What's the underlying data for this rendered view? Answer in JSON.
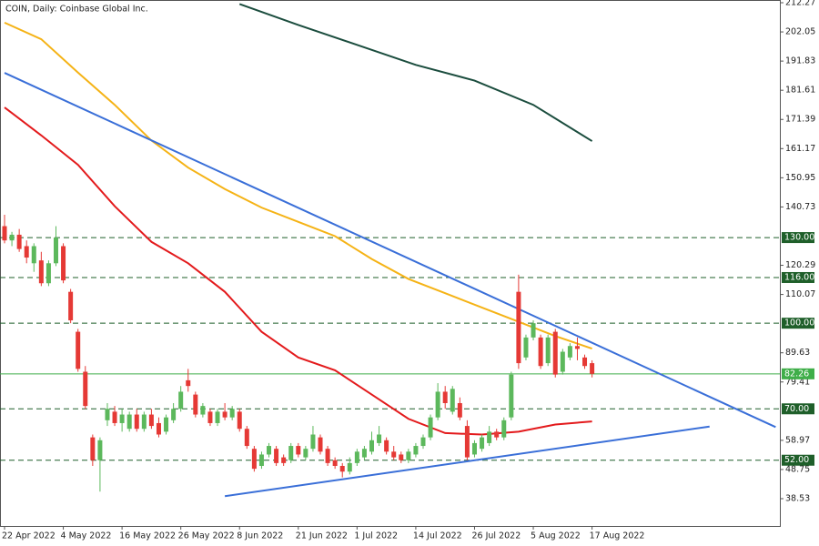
{
  "chart_data": {
    "type": "candlestick",
    "title": "COIN, Daily:  Coinbase Global Inc.",
    "categories": [
      "22 Apr 2022",
      null,
      null,
      null,
      null,
      null,
      null,
      null,
      "4 May 2022",
      null,
      null,
      null,
      null,
      null,
      null,
      null,
      "16 May 2022",
      null,
      null,
      null,
      null,
      null,
      null,
      null,
      "26 May 2022",
      null,
      null,
      null,
      null,
      null,
      null,
      null,
      "8 Jun 2022",
      null,
      null,
      null,
      null,
      null,
      null,
      null,
      "21 Jun 2022",
      null,
      null,
      null,
      null,
      null,
      null,
      null,
      "1 Jul 2022",
      null,
      null,
      null,
      null,
      null,
      null,
      null,
      "14 Jul 2022",
      null,
      null,
      null,
      null,
      null,
      null,
      null,
      "26 Jul 2022",
      null,
      null,
      null,
      null,
      null,
      null,
      null,
      "5 Aug 2022",
      null,
      null,
      null,
      null,
      null,
      null,
      null,
      "17 Aug 2022"
    ],
    "candles": [
      [
        134,
        138,
        128,
        129
      ],
      [
        129,
        132,
        127,
        131
      ],
      [
        131,
        133,
        125,
        126
      ],
      [
        127,
        129,
        121,
        123
      ],
      [
        121,
        128,
        118,
        127
      ],
      [
        122,
        125,
        113,
        114
      ],
      [
        114,
        122,
        113,
        121
      ],
      [
        121,
        134,
        120,
        130
      ],
      [
        127,
        128,
        114,
        115
      ],
      [
        111,
        112,
        100,
        101
      ],
      [
        97,
        98,
        83,
        84
      ],
      [
        83,
        85,
        70,
        71
      ],
      [
        60,
        61,
        50,
        52
      ],
      [
        52,
        60,
        41,
        59
      ],
      [
        66,
        72,
        64,
        70
      ],
      [
        69,
        71,
        64,
        65
      ],
      [
        65,
        70,
        62,
        68
      ],
      [
        63,
        69,
        62,
        68
      ],
      [
        68,
        70,
        62,
        63
      ],
      [
        63,
        69,
        62,
        68
      ],
      [
        68,
        70,
        63,
        64
      ],
      [
        65,
        67,
        60,
        61
      ],
      [
        62,
        68,
        61,
        67
      ],
      [
        66,
        72,
        65,
        70
      ],
      [
        70,
        78,
        69,
        76
      ],
      [
        80,
        84,
        76,
        78
      ],
      [
        75,
        76,
        67,
        68
      ],
      [
        68,
        72,
        67,
        71
      ],
      [
        69,
        70,
        64,
        65
      ],
      [
        65,
        70,
        64,
        69
      ],
      [
        69,
        72,
        66,
        67
      ],
      [
        67,
        71,
        66,
        70
      ],
      [
        69,
        70,
        62,
        63
      ],
      [
        63,
        64,
        56,
        57
      ],
      [
        56,
        57,
        48,
        49
      ],
      [
        50,
        55,
        49,
        54
      ],
      [
        54,
        58,
        53,
        57
      ],
      [
        56,
        57,
        50,
        51
      ],
      [
        53,
        54,
        50,
        51
      ],
      [
        52,
        58,
        51,
        57
      ],
      [
        57,
        58,
        53,
        54
      ],
      [
        53,
        57,
        52,
        56
      ],
      [
        56,
        64,
        55,
        61
      ],
      [
        60,
        61,
        54,
        55
      ],
      [
        56,
        57,
        50,
        51
      ],
      [
        52,
        53,
        49,
        50
      ],
      [
        50,
        51,
        46,
        48
      ],
      [
        48,
        53,
        47,
        51
      ],
      [
        51,
        56,
        50,
        55
      ],
      [
        53,
        57,
        52,
        56
      ],
      [
        55,
        62,
        54,
        59
      ],
      [
        58,
        64,
        57,
        61
      ],
      [
        59,
        60,
        54,
        55
      ],
      [
        55,
        57,
        52,
        53
      ],
      [
        54,
        55,
        51,
        52
      ],
      [
        52,
        56,
        51,
        55
      ],
      [
        54,
        58,
        53,
        57
      ],
      [
        57,
        61,
        56,
        60
      ],
      [
        60,
        68,
        59,
        67
      ],
      [
        67,
        79,
        66,
        76
      ],
      [
        76,
        78,
        70,
        72
      ],
      [
        69,
        78,
        68,
        77
      ],
      [
        72,
        74,
        66,
        67
      ],
      [
        64,
        66,
        52,
        53
      ],
      [
        54,
        59,
        53,
        58
      ],
      [
        56,
        61,
        55,
        60
      ],
      [
        58,
        64,
        57,
        62
      ],
      [
        62,
        63,
        59,
        60
      ],
      [
        60,
        67,
        59,
        66
      ],
      [
        67,
        83,
        66,
        82
      ],
      [
        111,
        117,
        84,
        86
      ],
      [
        88,
        96,
        87,
        95
      ],
      [
        95,
        101,
        94,
        100
      ],
      [
        95,
        96,
        84,
        85
      ],
      [
        86,
        96,
        85,
        95
      ],
      [
        97,
        98,
        81,
        82
      ],
      [
        83,
        91,
        82,
        90
      ],
      [
        88,
        93,
        87,
        92
      ],
      [
        92,
        95,
        87,
        91
      ],
      [
        88,
        89,
        84,
        85
      ],
      [
        86,
        87,
        81,
        82.26
      ]
    ],
    "bull_color": "#5cb85c",
    "bear_color": "#e53935",
    "series": [
      {
        "color": "#1b4d3e",
        "x": [
          32,
          40,
          48,
          56,
          64,
          72,
          80
        ],
        "values": [
          211.8,
          204.5,
          197.5,
          190.5,
          185,
          176.5,
          163.8
        ]
      },
      {
        "color": "#f5b316",
        "x": [
          0,
          5,
          10,
          15,
          20,
          25,
          30,
          35,
          40,
          45,
          50,
          55,
          60,
          65,
          70,
          75,
          80
        ],
        "values": [
          205.3,
          199.5,
          187.8,
          176.5,
          164,
          154.5,
          147,
          140.5,
          135.5,
          130.5,
          122.5,
          115.5,
          110.5,
          105.5,
          100.5,
          95.5,
          91.1
        ]
      },
      {
        "color": "#e31a1c",
        "x": [
          0,
          5,
          10,
          15,
          20,
          25,
          30,
          35,
          40,
          45,
          50,
          55,
          60,
          65,
          70,
          75,
          80
        ],
        "values": [
          175.6,
          165.8,
          155.5,
          141,
          128.5,
          121,
          111,
          97,
          88,
          83.5,
          75,
          66.5,
          61.5,
          61,
          62,
          64.5,
          65.6
        ]
      }
    ],
    "trendlines": [
      {
        "color": "#3a6fd8",
        "x": [
          0,
          105
        ],
        "values": [
          187.7,
          63.6
        ]
      },
      {
        "color": "#3a6fd8",
        "x": [
          30,
          96
        ],
        "values": [
          39.4,
          63.8
        ]
      }
    ],
    "levels": [
      {
        "value": 130,
        "label": "130.00",
        "color": "#1f5f2a",
        "dashed": true
      },
      {
        "value": 116,
        "label": "116.00",
        "color": "#1f5f2a",
        "dashed": true
      },
      {
        "value": 100,
        "label": "100.00",
        "color": "#1f5f2a",
        "dashed": true
      },
      {
        "value": 82.26,
        "label": "82.26",
        "color": "#3fae49",
        "dashed": false
      },
      {
        "value": 70,
        "label": "70.00",
        "color": "#1f5f2a",
        "dashed": true
      },
      {
        "value": 52,
        "label": "52.00",
        "color": "#1f5f2a",
        "dashed": true
      }
    ],
    "ylim": [
      28.96,
      213.23
    ],
    "yticks": [
      212.27,
      202.05,
      191.83,
      181.61,
      171.39,
      161.17,
      150.95,
      140.73,
      120.29,
      110.07,
      89.63,
      79.41,
      58.97,
      48.75,
      38.53
    ]
  }
}
